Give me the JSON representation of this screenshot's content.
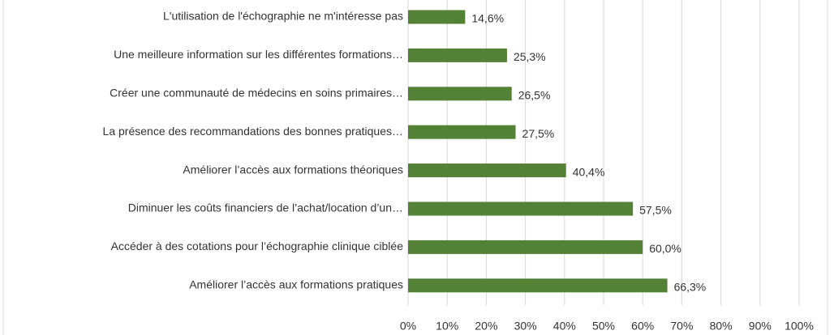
{
  "chart_data": {
    "type": "bar",
    "orientation": "horizontal",
    "categories": [
      "L'utilisation de l'échographie ne m'intéresse pas",
      "Une meilleure information sur les différentes formations…",
      "Créer une communauté de médecins en soins primaires…",
      "La présence des recommandations des bonnes pratiques…",
      "Améliorer l’accès aux formations théoriques",
      "Diminuer les coûts financiers de l’achat/location d’un…",
      "Accéder à des cotations pour l’échographie clinique ciblée",
      "Améliorer l’accès aux formations pratiques"
    ],
    "values": [
      14.6,
      25.3,
      26.5,
      27.5,
      40.4,
      57.5,
      60.0,
      66.3
    ],
    "value_labels": [
      "14,6%",
      "25,3%",
      "26,5%",
      "27,5%",
      "40,4%",
      "57,5%",
      "60,0%",
      "66,3%"
    ],
    "color": "#538135",
    "xlim": [
      0,
      100
    ],
    "xticks": [
      {
        "value": 0,
        "label": "0%"
      },
      {
        "value": 10,
        "label": "10%"
      },
      {
        "value": 20,
        "label": "20%"
      },
      {
        "value": 30,
        "label": "30%"
      },
      {
        "value": 40,
        "label": "40%"
      },
      {
        "value": 50,
        "label": "50%"
      },
      {
        "value": 60,
        "label": "60%"
      },
      {
        "value": 70,
        "label": "70%"
      },
      {
        "value": 80,
        "label": "80%"
      },
      {
        "value": 90,
        "label": "90%"
      },
      {
        "value": 100,
        "label": "100%"
      }
    ],
    "grid": true
  }
}
